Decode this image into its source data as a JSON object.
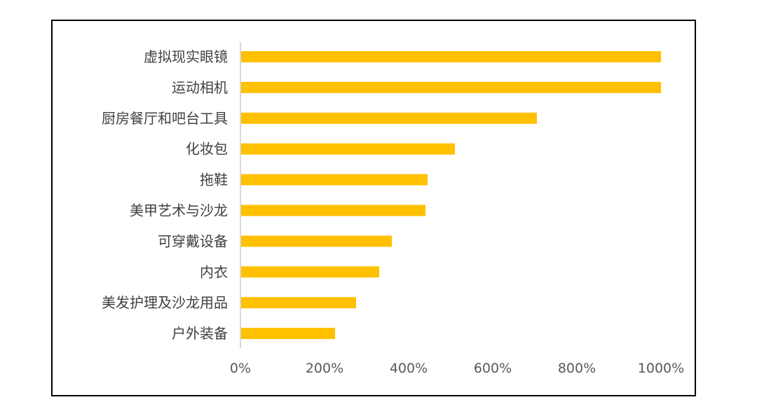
{
  "chart_data": {
    "type": "bar",
    "orientation": "horizontal",
    "title": "",
    "xlabel": "",
    "ylabel": "",
    "categories": [
      "虚拟现实眼镜",
      "运动相机",
      "厨房餐厅和吧台工具",
      "化妆包",
      "拖鞋",
      "美甲艺术与沙龙",
      "可穿戴设备",
      "内衣",
      "美发护理及沙龙用品",
      "户外装备"
    ],
    "values": [
      1000,
      1000,
      705,
      510,
      445,
      440,
      360,
      330,
      275,
      225
    ],
    "xlim": [
      0,
      1000
    ],
    "x_ticks": [
      0,
      200,
      400,
      600,
      800,
      1000
    ],
    "x_tick_labels": [
      "0%",
      "200%",
      "400%",
      "600%",
      "800%",
      "1000%"
    ],
    "grid": false,
    "legend": "none",
    "bar_color": "#FFC000",
    "axis_color": "#D9D9D9"
  }
}
